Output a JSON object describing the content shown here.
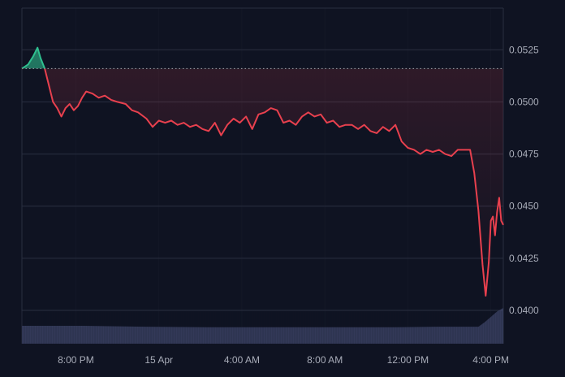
{
  "chart_data": {
    "type": "area",
    "baseline_value": 0.0516,
    "colors": {
      "background": "#0f1322",
      "grid": "#2a2f40",
      "line_below": "#e8404e",
      "line_above": "#2fbf8f",
      "baseline": "#c0c4cc",
      "volume": "#3a4162",
      "tick_text": "#a8acb8"
    },
    "ylim": [
      0.0384,
      0.0545
    ],
    "yticks": [
      "0.0525",
      "0.0500",
      "0.0475",
      "0.0450",
      "0.0425",
      "0.0400"
    ],
    "ytick_values": [
      0.0525,
      0.05,
      0.0475,
      0.045,
      0.0425,
      0.04
    ],
    "xlim": [
      0,
      23.2
    ],
    "xticks": [
      "8:00 PM",
      "15 Apr",
      "4:00 AM",
      "8:00 AM",
      "12:00 PM",
      "4:00 PM"
    ],
    "xtick_values": [
      2.6,
      6.6,
      10.6,
      14.6,
      18.6,
      22.6
    ],
    "grid": true,
    "series": [
      {
        "x": [
          0.0,
          0.3,
          0.55,
          0.75,
          0.9,
          1.1,
          1.3,
          1.5,
          1.7,
          1.9,
          2.1,
          2.3,
          2.5,
          2.7,
          2.9,
          3.1,
          3.4,
          3.7,
          4.0,
          4.3,
          4.6,
          5.0,
          5.3,
          5.6,
          6.0,
          6.3,
          6.6,
          6.9,
          7.2,
          7.5,
          7.8,
          8.1,
          8.4,
          8.7,
          9.0,
          9.3,
          9.6,
          9.9,
          10.2,
          10.5,
          10.8,
          11.1,
          11.4,
          11.7,
          12.0,
          12.3,
          12.6,
          12.9,
          13.2,
          13.5,
          13.8,
          14.1,
          14.4,
          14.7,
          15.0,
          15.3,
          15.6,
          15.9,
          16.2,
          16.5,
          16.8,
          17.1,
          17.4,
          17.7,
          18.0,
          18.3,
          18.6,
          18.9,
          19.2,
          19.5,
          19.8,
          20.1,
          20.4,
          20.7,
          21.0,
          21.3,
          21.6,
          21.8,
          22.0,
          22.2,
          22.35,
          22.5,
          22.6,
          22.7,
          22.8,
          22.9,
          23.0,
          23.1,
          23.2
        ],
        "values": [
          0.0516,
          0.0518,
          0.0522,
          0.0526,
          0.0521,
          0.0516,
          0.0508,
          0.05,
          0.0497,
          0.0493,
          0.0497,
          0.0499,
          0.0496,
          0.0498,
          0.0502,
          0.0505,
          0.0504,
          0.0502,
          0.0503,
          0.0501,
          0.05,
          0.0499,
          0.0496,
          0.0495,
          0.0492,
          0.0488,
          0.0491,
          0.049,
          0.0491,
          0.0489,
          0.049,
          0.0488,
          0.0489,
          0.0487,
          0.0486,
          0.049,
          0.0484,
          0.0489,
          0.0492,
          0.049,
          0.0493,
          0.0487,
          0.0494,
          0.0495,
          0.0497,
          0.0496,
          0.049,
          0.0491,
          0.0489,
          0.0493,
          0.0495,
          0.0493,
          0.0494,
          0.049,
          0.0491,
          0.0488,
          0.0489,
          0.0489,
          0.0487,
          0.0489,
          0.0486,
          0.0485,
          0.0488,
          0.0486,
          0.0489,
          0.0481,
          0.0478,
          0.0477,
          0.0475,
          0.0477,
          0.0476,
          0.0477,
          0.0475,
          0.0474,
          0.0477,
          0.0477,
          0.0477,
          0.0466,
          0.0448,
          0.0422,
          0.0407,
          0.0423,
          0.0443,
          0.0445,
          0.0436,
          0.0447,
          0.0454,
          0.0443,
          0.0441
        ]
      }
    ],
    "volume": {
      "x": [
        0,
        3,
        6,
        9,
        12,
        15,
        18,
        20,
        22.0,
        22.3,
        22.6,
        22.9,
        23.2
      ],
      "values": [
        1.0,
        1.0,
        0.95,
        0.92,
        0.92,
        0.92,
        0.92,
        0.95,
        0.95,
        1.2,
        1.5,
        1.8,
        2.0
      ]
    }
  }
}
